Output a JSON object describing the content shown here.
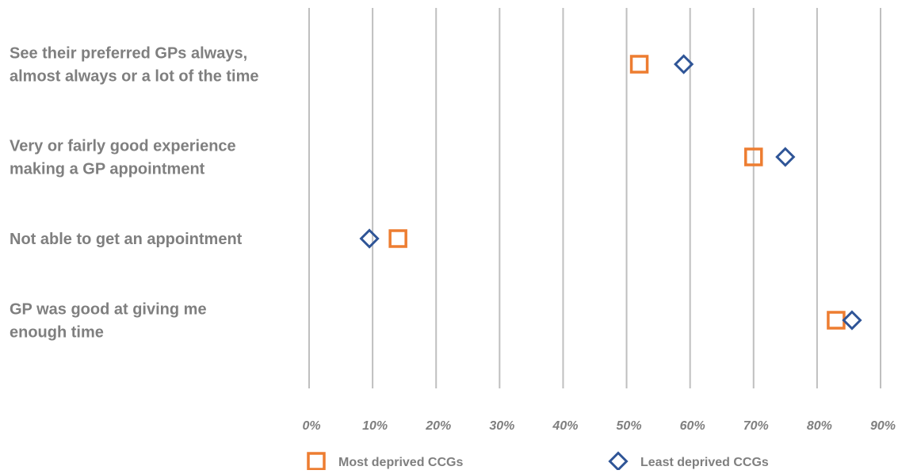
{
  "chart_data": {
    "type": "scatter",
    "orientation": "horizontal-dot-plot",
    "categories": [
      [
        "See their preferred GPs always,",
        "almost always or a lot of the time"
      ],
      [
        "Very or fairly good experience",
        "making a GP appointment"
      ],
      [
        "Not able to get an appointment"
      ],
      [
        "GP was good at giving me",
        "enough time"
      ]
    ],
    "series": [
      {
        "name": "Most deprived CCGs",
        "marker": "square",
        "color": "#ed7d31",
        "values": [
          52,
          70,
          14,
          83
        ]
      },
      {
        "name": "Least deprived CCGs",
        "marker": "diamond",
        "color": "#2f5597",
        "values": [
          59,
          75,
          9.5,
          85.5
        ]
      }
    ],
    "xlim": [
      0,
      90
    ],
    "xticks": [
      0,
      10,
      20,
      30,
      40,
      50,
      60,
      70,
      80,
      90
    ],
    "tick_labels": [
      "0%",
      "10%",
      "20%",
      "30%",
      "40%",
      "50%",
      "60%",
      "70%",
      "80%",
      "90%"
    ],
    "grid": "vertical",
    "legend": "bottom"
  }
}
